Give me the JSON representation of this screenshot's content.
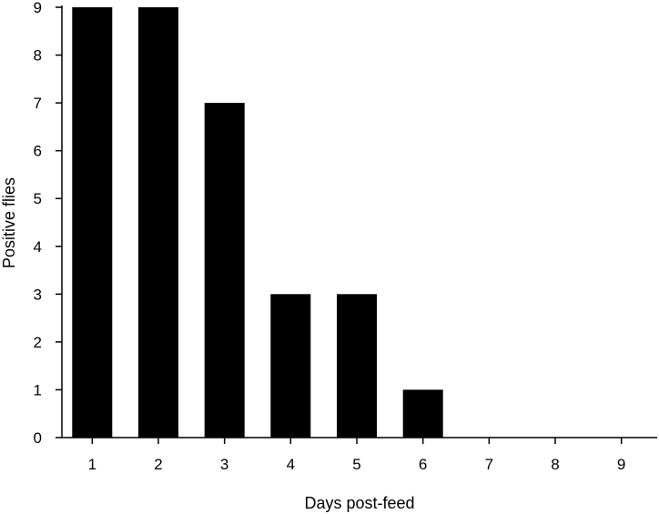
{
  "chart_data": {
    "type": "bar",
    "categories": [
      "1",
      "2",
      "3",
      "4",
      "5",
      "6",
      "7",
      "8",
      "9"
    ],
    "values": [
      9,
      9,
      7,
      3,
      3,
      1,
      0,
      0,
      0
    ],
    "title": "",
    "xlabel": "Days post-feed",
    "ylabel": "Positive flies",
    "ylim": [
      0,
      9
    ],
    "yticks": [
      0,
      1,
      2,
      3,
      4,
      5,
      6,
      7,
      8,
      9
    ],
    "grid": false,
    "bar_color": "#000000"
  }
}
